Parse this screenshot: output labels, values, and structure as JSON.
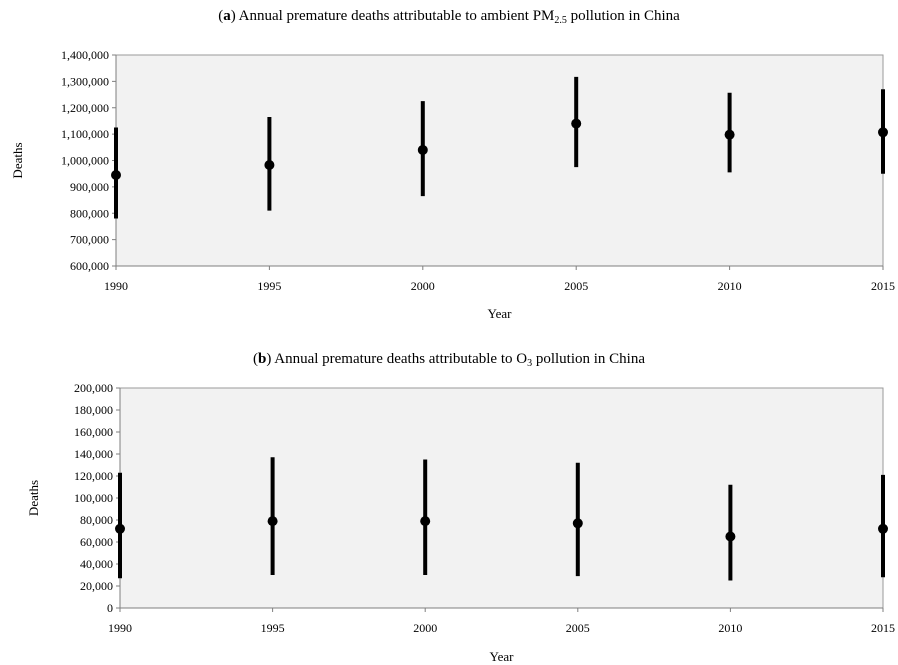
{
  "chart_data": [
    {
      "type": "scatter",
      "panel_label": "a",
      "title_main": "Annual premature deaths attributable to ambient PM",
      "title_sub": "2.5",
      "title_tail": " pollution in China",
      "xlabel": "Year",
      "ylabel": "Deaths",
      "x_ticks": [
        "1990",
        "1995",
        "2000",
        "2005",
        "2010",
        "2015"
      ],
      "y_ticks": [
        "600,000",
        "700,000",
        "800,000",
        "900,000",
        "1,000,000",
        "1,100,000",
        "1,200,000",
        "1,300,000",
        "1,400,000"
      ],
      "xlim": [
        1990,
        2015
      ],
      "ylim": [
        600000,
        1400000
      ],
      "grid": false,
      "plot_background": "#f2f2f2",
      "marker_color": "#000000",
      "series": [
        {
          "x": [
            1990,
            1995,
            2000,
            2005,
            2010,
            2015
          ],
          "y": [
            945000,
            983000,
            1040000,
            1140000,
            1098000,
            1107000
          ],
          "err_low": [
            780000,
            810000,
            865000,
            975000,
            955000,
            950000
          ],
          "err_high": [
            1125000,
            1165000,
            1225000,
            1317000,
            1257000,
            1270000
          ]
        }
      ]
    },
    {
      "type": "scatter",
      "panel_label": "b",
      "title_main": "Annual premature deaths attributable to O",
      "title_sub": "3",
      "title_tail": " pollution in China",
      "xlabel": "Year",
      "ylabel": "Deaths",
      "x_ticks": [
        "1990",
        "1995",
        "2000",
        "2005",
        "2010",
        "2015"
      ],
      "y_ticks": [
        "0",
        "20,000",
        "40,000",
        "60,000",
        "80,000",
        "100,000",
        "120,000",
        "140,000",
        "160,000",
        "180,000",
        "200,000"
      ],
      "xlim": [
        1990,
        2015
      ],
      "ylim": [
        0,
        200000
      ],
      "grid": false,
      "plot_background": "#f2f2f2",
      "marker_color": "#000000",
      "series": [
        {
          "x": [
            1990,
            1995,
            2000,
            2005,
            2010,
            2015
          ],
          "y": [
            72000,
            79000,
            79000,
            77000,
            65000,
            72000
          ],
          "err_low": [
            27000,
            30000,
            30000,
            29000,
            25000,
            28000
          ],
          "err_high": [
            123000,
            137000,
            135000,
            132000,
            112000,
            121000
          ]
        }
      ]
    }
  ]
}
